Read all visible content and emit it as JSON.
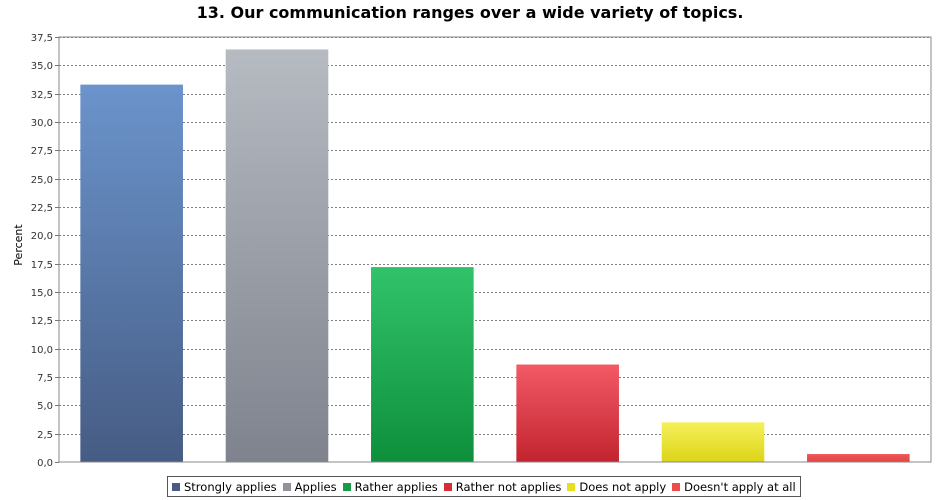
{
  "chart_data": {
    "type": "bar",
    "title": "13. Our communication ranges over a wide variety of topics.",
    "ylabel": "Percent",
    "xlabel": "",
    "ylim": [
      0,
      37.5
    ],
    "ytick_step": 2.5,
    "grid": true,
    "legend_position": "bottom",
    "categories": [
      "Strongly applies",
      "Applies",
      "Rather applies",
      "Rather not applies",
      "Does not apply",
      "Doesn't apply at all"
    ],
    "values": [
      33.3,
      36.4,
      17.2,
      8.6,
      3.5,
      0.7
    ],
    "colors": [
      {
        "top": "#6b94cc",
        "bottom": "#465c84"
      },
      {
        "top": "#b6bac1",
        "bottom": "#7e838d"
      },
      {
        "top": "#31c36a",
        "bottom": "#0e8f3b"
      },
      {
        "top": "#f25a66",
        "bottom": "#c2242f"
      },
      {
        "top": "#f5f05a",
        "bottom": "#dcd517"
      },
      {
        "top": "#f05656",
        "bottom": "#e24545"
      }
    ],
    "legend_colors": [
      "#465c84",
      "#8f949c",
      "#1a9a48",
      "#d12f3a",
      "#e5df1f",
      "#ef4d4d"
    ]
  }
}
